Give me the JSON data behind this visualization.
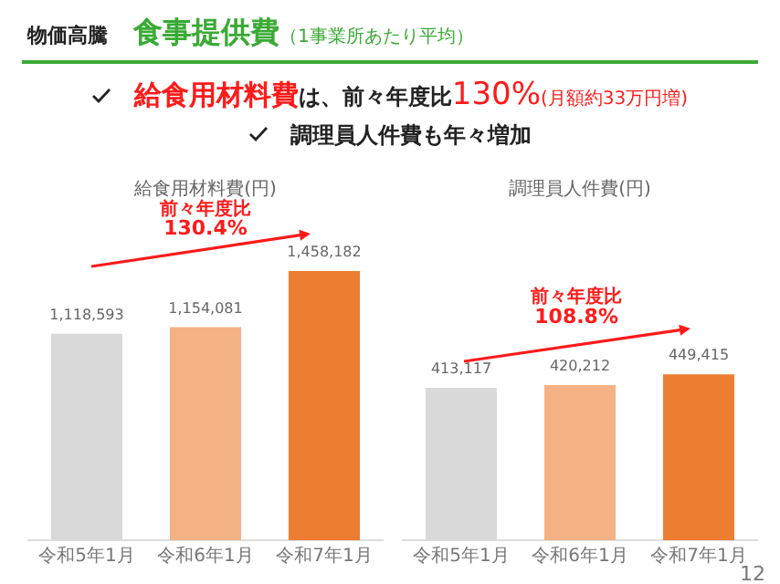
{
  "chart_data": [
    {
      "type": "bar",
      "title": "給食用材料費(円)",
      "categories": [
        "令和5年1月",
        "令和6年1月",
        "令和7年1月"
      ],
      "values": [
        1118593,
        1154081,
        1458182
      ],
      "value_labels": [
        "1,118,593",
        "1,154,081",
        "1,458,182"
      ],
      "colors": [
        "#d9d9d9",
        "#f4b183",
        "#ed7d31"
      ],
      "tick_labels": "x",
      "annotations": [
        "物価高騰",
        "食事提供費",
        "（1事業所あたり平均）",
        "給食用材料費",
        "は、前々年度比",
        "130%",
        "(月額約33万円増)",
        "調理員人件費も年々増加",
        "前々年度比",
        "130.4%"
      ]
    },
    {
      "type": "bar",
      "title": "調理員人件費(円)",
      "categories": [
        "令和5年1月",
        "令和6年1月",
        "令和7年1月"
      ],
      "values": [
        413117,
        420212,
        449415
      ],
      "value_labels": [
        "413,117",
        "420,212",
        "449,415"
      ],
      "colors": [
        "#d9d9d9",
        "#f4b183",
        "#ed7d31"
      ],
      "tick_labels": "x",
      "annotations": [
        "前々年度比",
        "108.8%",
        "12"
      ]
    }
  ]
}
